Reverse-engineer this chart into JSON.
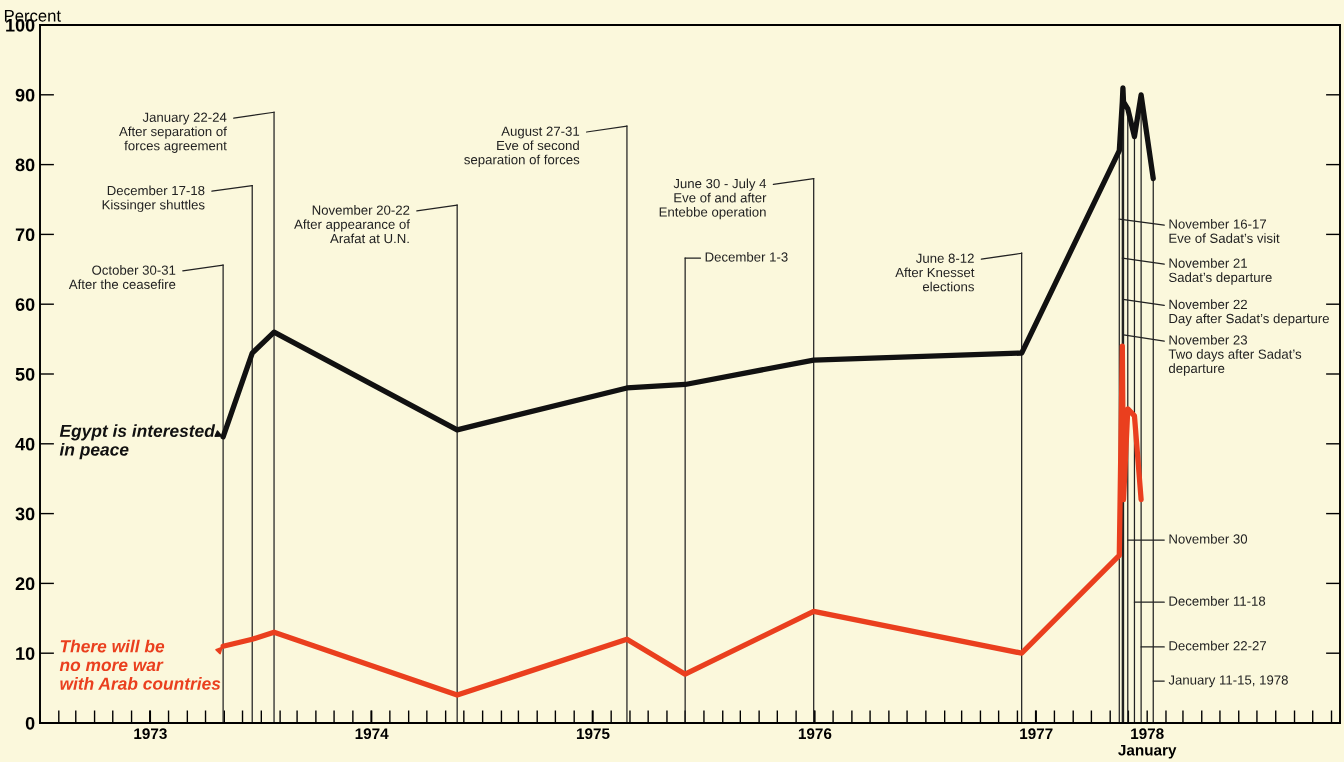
{
  "chart_data": {
    "type": "line",
    "ylabel": "Percent",
    "x": [
      "1973-10-30",
      "1973-12-17",
      "1974-01-22",
      "1974-11-20",
      "1975-08-27",
      "1975-12-01",
      "1976-06-30",
      "1977-06-08",
      "1977-11-16",
      "1977-11-21",
      "1977-11-22",
      "1977-11-23",
      "1977-11-30",
      "1977-12-11",
      "1977-12-22",
      "1978-01-11"
    ],
    "series": [
      {
        "name": "Egypt is interested\nin peace",
        "color": "#111111",
        "values": [
          41,
          53,
          56,
          42,
          48,
          48.5,
          52,
          53,
          82,
          89,
          91,
          89,
          88,
          84,
          90,
          78
        ]
      },
      {
        "name": "There will be\nno more war\nwith Arab countries",
        "color": "#ea3f1e",
        "values": [
          11,
          12,
          13,
          4,
          12,
          7,
          16,
          10,
          24,
          54,
          43,
          32,
          45,
          44,
          32,
          null
        ]
      }
    ],
    "xlim": [
      "1973-01-01",
      "1978-11-15"
    ],
    "xticks": [
      {
        "value": "1973-07-02",
        "label": "1973"
      },
      {
        "value": "1974-01-01",
        "label": null
      },
      {
        "value": "1974-07-02",
        "label": "1974"
      },
      {
        "value": "1975-01-01",
        "label": null
      },
      {
        "value": "1975-07-02",
        "label": "1975"
      },
      {
        "value": "1976-01-01",
        "label": null
      },
      {
        "value": "1976-07-02",
        "label": "1976"
      },
      {
        "value": "1977-01-01",
        "label": null
      },
      {
        "value": "1977-07-02",
        "label": "1977"
      },
      {
        "value": "1978-01-01",
        "label": "1978\nJanuary"
      }
    ],
    "ylim": [
      0,
      100
    ],
    "legend": "left",
    "yticks": [
      0,
      10,
      20,
      30,
      40,
      50,
      60,
      70,
      80,
      90,
      100
    ],
    "ref_lines": [
      {
        "axis": "x",
        "value": "1973-10-30",
        "label": "October 30-31\nAfter the ceasefire"
      },
      {
        "axis": "x",
        "value": "1973-12-17",
        "label": "December 17-18\nKissinger shuttles"
      },
      {
        "axis": "x",
        "value": "1974-01-22",
        "label": "January 22-24\nAfter separation of\nforces agreement"
      },
      {
        "axis": "x",
        "value": "1974-11-20",
        "label": "November 20-22\nAfter appearance of\nArafat at U.N."
      },
      {
        "axis": "x",
        "value": "1975-08-27",
        "label": "August 27-31\nEve of second\nseparation of forces"
      },
      {
        "axis": "x",
        "value": "1975-12-01",
        "label": "December 1-3"
      },
      {
        "axis": "x",
        "value": "1976-06-30",
        "label": "June 30 - July 4\nEve of and after\nEntebbe operation"
      },
      {
        "axis": "x",
        "value": "1977-06-08",
        "label": "June 8-12\nAfter Knesset\nelections"
      },
      {
        "axis": "x",
        "value": "1977-11-16",
        "label": "November 16-17\nEve of Sadat’s visit"
      },
      {
        "axis": "x",
        "value": "1977-11-21",
        "label": "November 21\nSadat’s departure"
      },
      {
        "axis": "x",
        "value": "1977-11-22",
        "label": "November 22\nDay after Sadat’s departure"
      },
      {
        "axis": "x",
        "value": "1977-11-23",
        "label": "November 23\nTwo days after Sadat’s\ndeparture"
      },
      {
        "axis": "x",
        "value": "1977-11-30",
        "label": "November 30"
      },
      {
        "axis": "x",
        "value": "1977-12-11",
        "label": "December 11-18"
      },
      {
        "axis": "x",
        "value": "1977-12-22",
        "label": "December 22-27"
      },
      {
        "axis": "x",
        "value": "1978-01-11",
        "label": "January 11-15, 1978"
      }
    ]
  }
}
